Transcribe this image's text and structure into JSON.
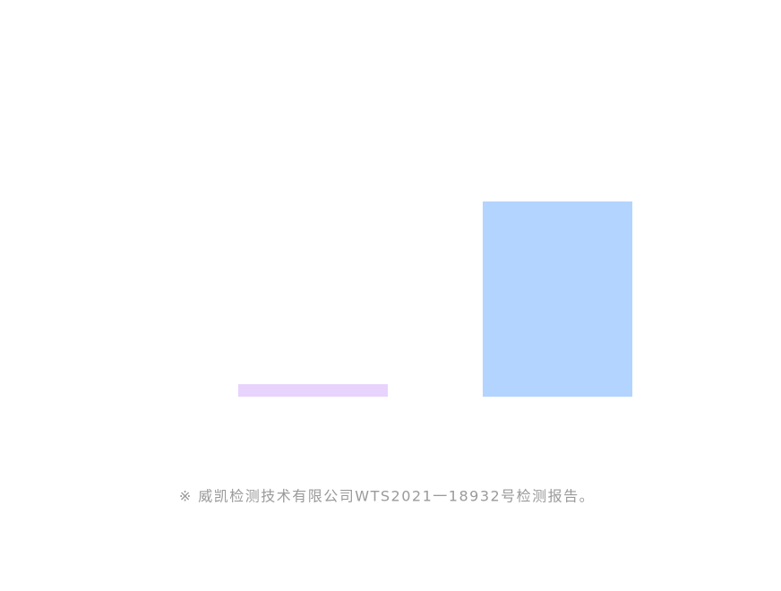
{
  "chart_data": {
    "type": "bar",
    "categories": [
      null,
      null
    ],
    "values": [
      6.4,
      100
    ],
    "colors": [
      "#e8d3fc",
      "#b3d4ff"
    ],
    "ylim": [
      0,
      100
    ],
    "note": "※ 威凯检测技术有限公司WTS2021一18932号检测报告。"
  }
}
